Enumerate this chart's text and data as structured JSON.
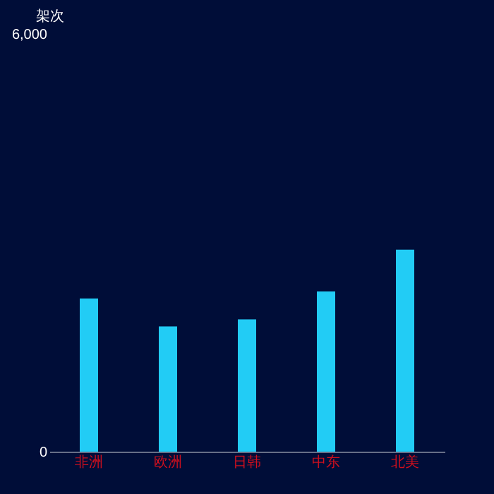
{
  "chart_data": {
    "type": "bar",
    "ylabel": "架次",
    "categories": [
      "非洲",
      "欧洲",
      "日韩",
      "中东",
      "北美"
    ],
    "values": [
      2200,
      1800,
      1900,
      2300,
      2900
    ],
    "color": "#22ccf5",
    "ylim": [
      0,
      6000
    ],
    "yticks": [
      0,
      {
        "value": 6000,
        "label": "6,000"
      }
    ],
    "grid": false
  }
}
